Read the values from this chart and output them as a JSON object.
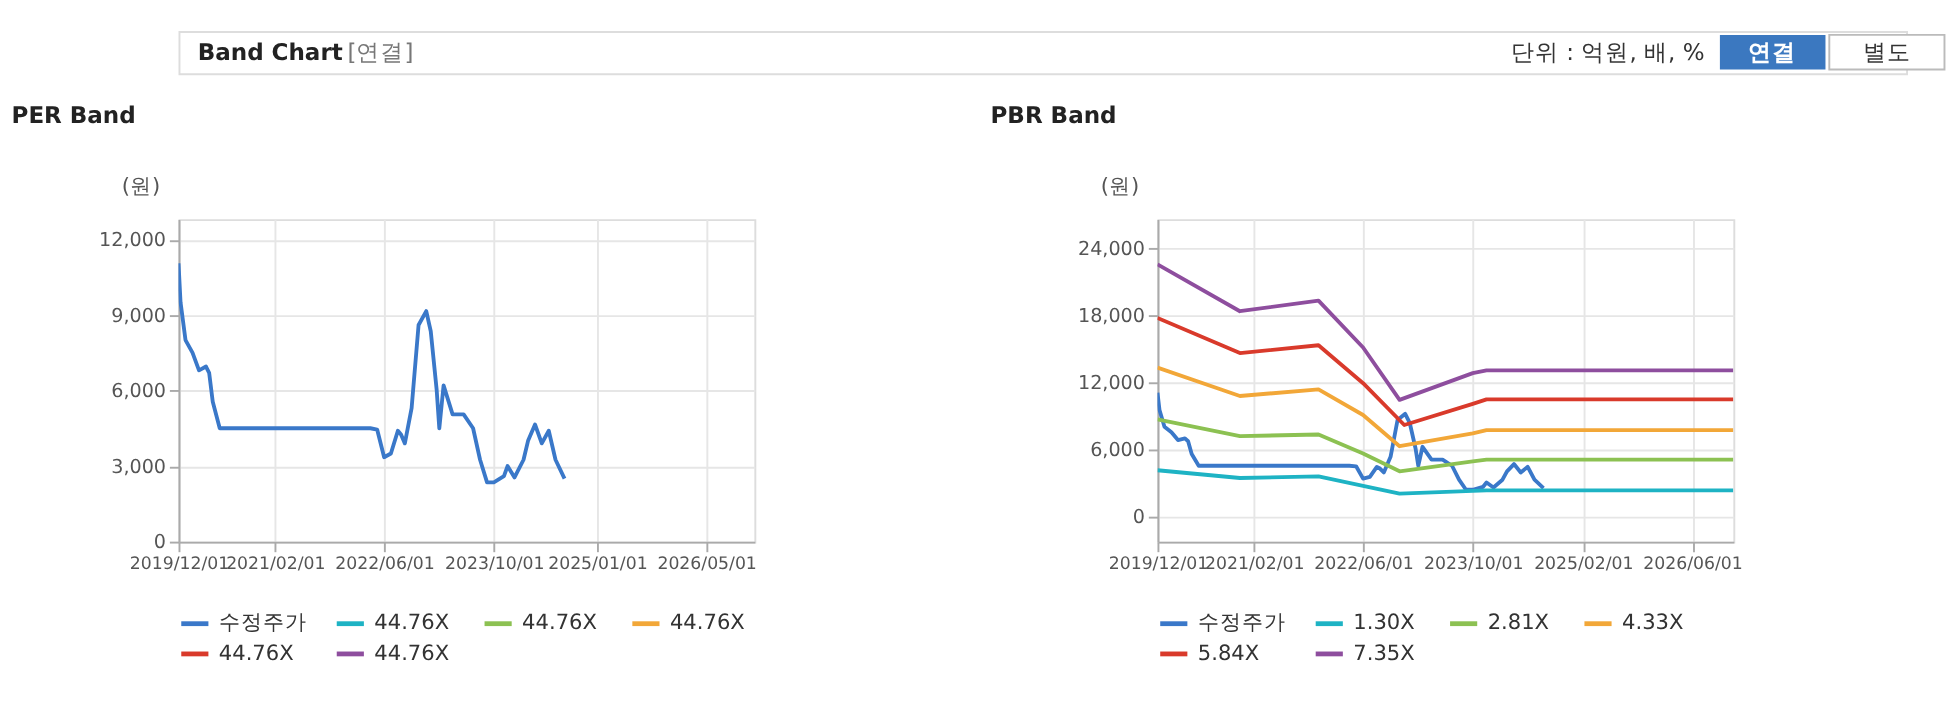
{
  "chart_data": [
    {
      "type": "line",
      "title": "PER Band",
      "ylabel": "(원)",
      "annotations": [
        "Band Chart",
        "[연결]",
        "단위 : 억원, 배, %",
        "연결",
        "별도"
      ],
      "xlim": [
        "2019-12-01",
        "2026-12-01"
      ],
      "ylim": [
        0,
        12800
      ],
      "yticks": [
        {
          "value": 0,
          "label": "0"
        },
        {
          "value": 3000,
          "label": "3,000"
        },
        {
          "value": 6000,
          "label": "6,000"
        },
        {
          "value": 9000,
          "label": "9,000"
        },
        {
          "value": 12000,
          "label": "12,000"
        }
      ],
      "xticks": [
        {
          "value": "2019-12-01",
          "label": "2019/12/01"
        },
        {
          "value": "2021-02-01",
          "label": "2021/02/01"
        },
        {
          "value": "2022-06-01",
          "label": "2022/06/01"
        },
        {
          "value": "2023-10-01",
          "label": "2023/10/01"
        },
        {
          "value": "2025-01-01",
          "label": "2025/01/01"
        },
        {
          "value": "2026-05-01",
          "label": "2026/05/01"
        }
      ],
      "grid": true,
      "legend": "bottom",
      "series": [
        {
          "name": "수정주가",
          "color": "#3a78c9",
          "x": [
            "2019-12-01",
            "2019-12-10",
            "2020-01-01",
            "2020-02-01",
            "2020-03-01",
            "2020-04-01",
            "2020-04-15",
            "2020-05-01",
            "2020-06-01",
            "2022-04-01",
            "2022-05-01",
            "2022-06-01",
            "2022-07-01",
            "2022-08-01",
            "2022-08-15",
            "2022-09-01",
            "2022-10-01",
            "2022-11-01",
            "2022-12-05",
            "2022-12-25",
            "2023-01-20",
            "2023-02-01",
            "2023-02-20",
            "2023-04-01",
            "2023-05-20",
            "2023-07-01",
            "2023-08-01",
            "2023-09-01",
            "2023-10-01",
            "2023-11-15",
            "2023-12-01",
            "2024-01-01",
            "2024-02-10",
            "2024-03-01",
            "2024-04-01",
            "2024-05-01",
            "2024-06-01",
            "2024-07-01",
            "2024-08-10"
          ],
          "values": [
            11050,
            9500,
            8000,
            7500,
            6800,
            6950,
            6700,
            5550,
            4500,
            4500,
            4450,
            3350,
            3500,
            4400,
            4250,
            3900,
            5300,
            8600,
            9150,
            8350,
            6050,
            4500,
            6200,
            5050,
            5050,
            4500,
            3250,
            2350,
            2350,
            2600,
            3000,
            2550,
            3250,
            4000,
            4650,
            3900,
            4400,
            3250,
            2500
          ]
        },
        {
          "name": "44.76X",
          "color": "#1eb3c4"
        },
        {
          "name": "44.76X",
          "color": "#8cc152"
        },
        {
          "name": "44.76X",
          "color": "#f2a738"
        },
        {
          "name": "44.76X",
          "color": "#d93a2b"
        },
        {
          "name": "44.76X",
          "color": "#8e4e9e"
        }
      ]
    },
    {
      "type": "line",
      "title": "PBR Band",
      "ylabel": "(원)",
      "xlim": [
        "2019-12-01",
        "2026-12-01"
      ],
      "ylim": [
        -2300,
        26600
      ],
      "yticks": [
        {
          "value": 0,
          "label": "0"
        },
        {
          "value": 6000,
          "label": "6,000"
        },
        {
          "value": 12000,
          "label": "12,000"
        },
        {
          "value": 18000,
          "label": "18,000"
        },
        {
          "value": 24000,
          "label": "24,000"
        }
      ],
      "xticks": [
        {
          "value": "2019-12-01",
          "label": "2019/12/01"
        },
        {
          "value": "2021-02-01",
          "label": "2021/02/01"
        },
        {
          "value": "2022-06-01",
          "label": "2022/06/01"
        },
        {
          "value": "2023-10-01",
          "label": "2023/10/01"
        },
        {
          "value": "2025-02-01",
          "label": "2025/02/01"
        },
        {
          "value": "2026-06-01",
          "label": "2026/06/01"
        }
      ],
      "grid": true,
      "legend": "bottom",
      "series": [
        {
          "name": "수정주가",
          "color": "#3a78c9",
          "x": [
            "2019-12-01",
            "2019-12-10",
            "2020-01-01",
            "2020-02-01",
            "2020-03-01",
            "2020-04-01",
            "2020-04-15",
            "2020-05-01",
            "2020-06-01",
            "2022-04-01",
            "2022-05-01",
            "2022-06-01",
            "2022-07-01",
            "2022-08-01",
            "2022-08-15",
            "2022-09-01",
            "2022-10-01",
            "2022-11-01",
            "2022-12-05",
            "2022-12-25",
            "2023-01-20",
            "2023-02-01",
            "2023-02-20",
            "2023-04-01",
            "2023-05-20",
            "2023-07-01",
            "2023-08-01",
            "2023-09-01",
            "2023-10-01",
            "2023-11-15",
            "2023-12-01",
            "2024-01-01",
            "2024-02-10",
            "2024-03-01",
            "2024-04-01",
            "2024-05-01",
            "2024-06-01",
            "2024-07-01",
            "2024-08-10"
          ],
          "values": [
            11050,
            9500,
            8000,
            7500,
            6800,
            6950,
            6700,
            5550,
            4500,
            4500,
            4450,
            3350,
            3500,
            4400,
            4250,
            3900,
            5300,
            8600,
            9150,
            8350,
            6050,
            4500,
            6200,
            5050,
            5050,
            4500,
            3250,
            2350,
            2350,
            2600,
            3000,
            2550,
            3250,
            4000,
            4650,
            3900,
            4400,
            3250,
            2500
          ]
        },
        {
          "name": "1.30X",
          "color": "#1eb3c4",
          "x": [
            "2019-12-01",
            "2020-12-01",
            "2021-11-15",
            "2022-06-01",
            "2022-11-10",
            "2023-10-01",
            "2023-12-01",
            "2026-12-01"
          ],
          "values": [
            4100,
            3400,
            3550,
            2700,
            2000,
            2250,
            2300,
            2300
          ]
        },
        {
          "name": "2.81X",
          "color": "#8cc152",
          "x": [
            "2019-12-01",
            "2020-12-01",
            "2021-11-15",
            "2022-06-01",
            "2022-11-10",
            "2023-10-01",
            "2023-12-01",
            "2026-12-01"
          ],
          "values": [
            8650,
            7150,
            7300,
            5600,
            4000,
            4900,
            5050,
            5050
          ]
        },
        {
          "name": "4.33X",
          "color": "#f2a738",
          "x": [
            "2019-12-01",
            "2020-12-01",
            "2021-11-15",
            "2022-06-01",
            "2022-11-10",
            "2023-10-01",
            "2023-12-01",
            "2026-12-01"
          ],
          "values": [
            13300,
            10750,
            11350,
            9050,
            6250,
            7400,
            7700,
            7700
          ]
        },
        {
          "name": "5.84X",
          "color": "#d93a2b",
          "x": [
            "2019-12-01",
            "2020-12-01",
            "2021-11-15",
            "2022-06-01",
            "2022-12-01",
            "2023-10-01",
            "2023-12-01",
            "2026-12-01"
          ],
          "values": [
            17750,
            14600,
            15300,
            11900,
            8150,
            10050,
            10450,
            10450
          ]
        },
        {
          "name": "7.35X",
          "color": "#8e4e9e",
          "x": [
            "2019-12-01",
            "2020-12-01",
            "2021-11-15",
            "2022-06-01",
            "2022-11-10",
            "2023-10-01",
            "2023-12-01",
            "2026-12-01"
          ],
          "values": [
            22550,
            18350,
            19300,
            15100,
            10400,
            12800,
            13050,
            13050
          ]
        }
      ]
    }
  ]
}
